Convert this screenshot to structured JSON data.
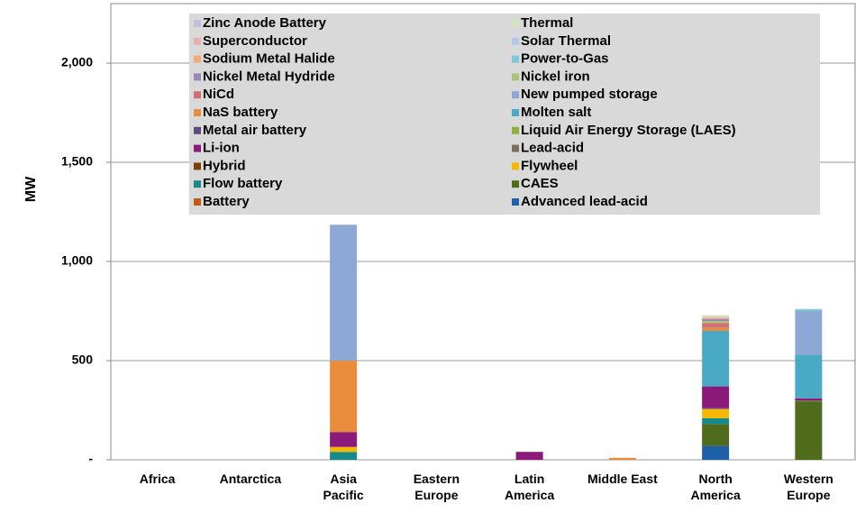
{
  "chart_data": {
    "type": "stacked_bar",
    "ylabel": "MW",
    "categories": [
      "Africa",
      "Antarctica",
      "Asia Pacific",
      "Eastern Europe",
      "Latin America",
      "Middle East",
      "North America",
      "Western Europe"
    ],
    "ylim": [
      0,
      2300
    ],
    "yticks": [
      {
        "value": 0,
        "label": "-"
      },
      500,
      {
        "value": 1000,
        "label": "1,000"
      },
      {
        "value": 1500,
        "label": "1,500"
      },
      {
        "value": 2000,
        "label": "2,000"
      }
    ],
    "grid": true,
    "legend": "top",
    "series": [
      {
        "name": "Advanced lead-acid",
        "color": "#1f5fa8",
        "values": [
          0,
          0,
          0,
          0,
          0,
          0,
          70,
          0
        ]
      },
      {
        "name": "Battery",
        "color": "#c55a11",
        "values": [
          0,
          0,
          0,
          0,
          0,
          0,
          0,
          0
        ]
      },
      {
        "name": "CAES",
        "color": "#4f6b1c",
        "values": [
          0,
          0,
          0,
          0,
          0,
          0,
          110,
          295
        ]
      },
      {
        "name": "Flow battery",
        "color": "#16898a",
        "values": [
          0,
          0,
          40,
          0,
          0,
          0,
          30,
          0
        ]
      },
      {
        "name": "Flywheel",
        "color": "#f5b800",
        "values": [
          0,
          0,
          25,
          0,
          0,
          0,
          45,
          0
        ]
      },
      {
        "name": "Hybrid",
        "color": "#7f3f00",
        "values": [
          0,
          0,
          0,
          0,
          0,
          0,
          0,
          0
        ]
      },
      {
        "name": "Lead-acid",
        "color": "#7f6f5f",
        "values": [
          0,
          0,
          0,
          0,
          0,
          0,
          5,
          5
        ]
      },
      {
        "name": "Li-ion",
        "color": "#8b1a7a",
        "values": [
          0,
          0,
          75,
          0,
          40,
          0,
          110,
          10
        ]
      },
      {
        "name": "Liquid Air Energy Storage (LAES)",
        "color": "#8db03a",
        "values": [
          0,
          0,
          0,
          0,
          0,
          0,
          0,
          0
        ]
      },
      {
        "name": "Metal air battery",
        "color": "#604a7b",
        "values": [
          0,
          0,
          0,
          0,
          0,
          0,
          0,
          0
        ]
      },
      {
        "name": "Molten salt",
        "color": "#4aaac5",
        "values": [
          0,
          0,
          0,
          0,
          0,
          0,
          280,
          220
        ]
      },
      {
        "name": "NaS battery",
        "color": "#e98c3c",
        "values": [
          0,
          0,
          360,
          0,
          0,
          10,
          15,
          0
        ]
      },
      {
        "name": "New pumped storage",
        "color": "#8ea8d6",
        "values": [
          0,
          0,
          685,
          0,
          0,
          0,
          0,
          220
        ]
      },
      {
        "name": "NiCd",
        "color": "#d07070",
        "values": [
          0,
          0,
          0,
          0,
          0,
          0,
          25,
          0
        ]
      },
      {
        "name": "Nickel iron",
        "color": "#a6c47a",
        "values": [
          0,
          0,
          0,
          0,
          0,
          0,
          10,
          0
        ]
      },
      {
        "name": "Nickel Metal Hydride",
        "color": "#9b86b5",
        "values": [
          0,
          0,
          0,
          0,
          0,
          0,
          10,
          0
        ]
      },
      {
        "name": "Power-to-Gas",
        "color": "#7ec8d8",
        "values": [
          0,
          0,
          0,
          0,
          0,
          0,
          0,
          10
        ]
      },
      {
        "name": "Sodium Metal Halide",
        "color": "#f4a872",
        "values": [
          0,
          0,
          0,
          0,
          0,
          0,
          5,
          0
        ]
      },
      {
        "name": "Solar Thermal",
        "color": "#b5c8e6",
        "values": [
          0,
          0,
          0,
          0,
          0,
          0,
          0,
          0
        ]
      },
      {
        "name": "Superconductor",
        "color": "#e6b0ae",
        "values": [
          0,
          0,
          0,
          0,
          0,
          0,
          5,
          0
        ]
      },
      {
        "name": "Thermal",
        "color": "#d4e4c0",
        "values": [
          0,
          0,
          0,
          0,
          0,
          0,
          10,
          0
        ]
      },
      {
        "name": "Zinc Anode Battery",
        "color": "#c4bcd8",
        "values": [
          0,
          0,
          0,
          0,
          0,
          0,
          0,
          0
        ]
      }
    ]
  }
}
